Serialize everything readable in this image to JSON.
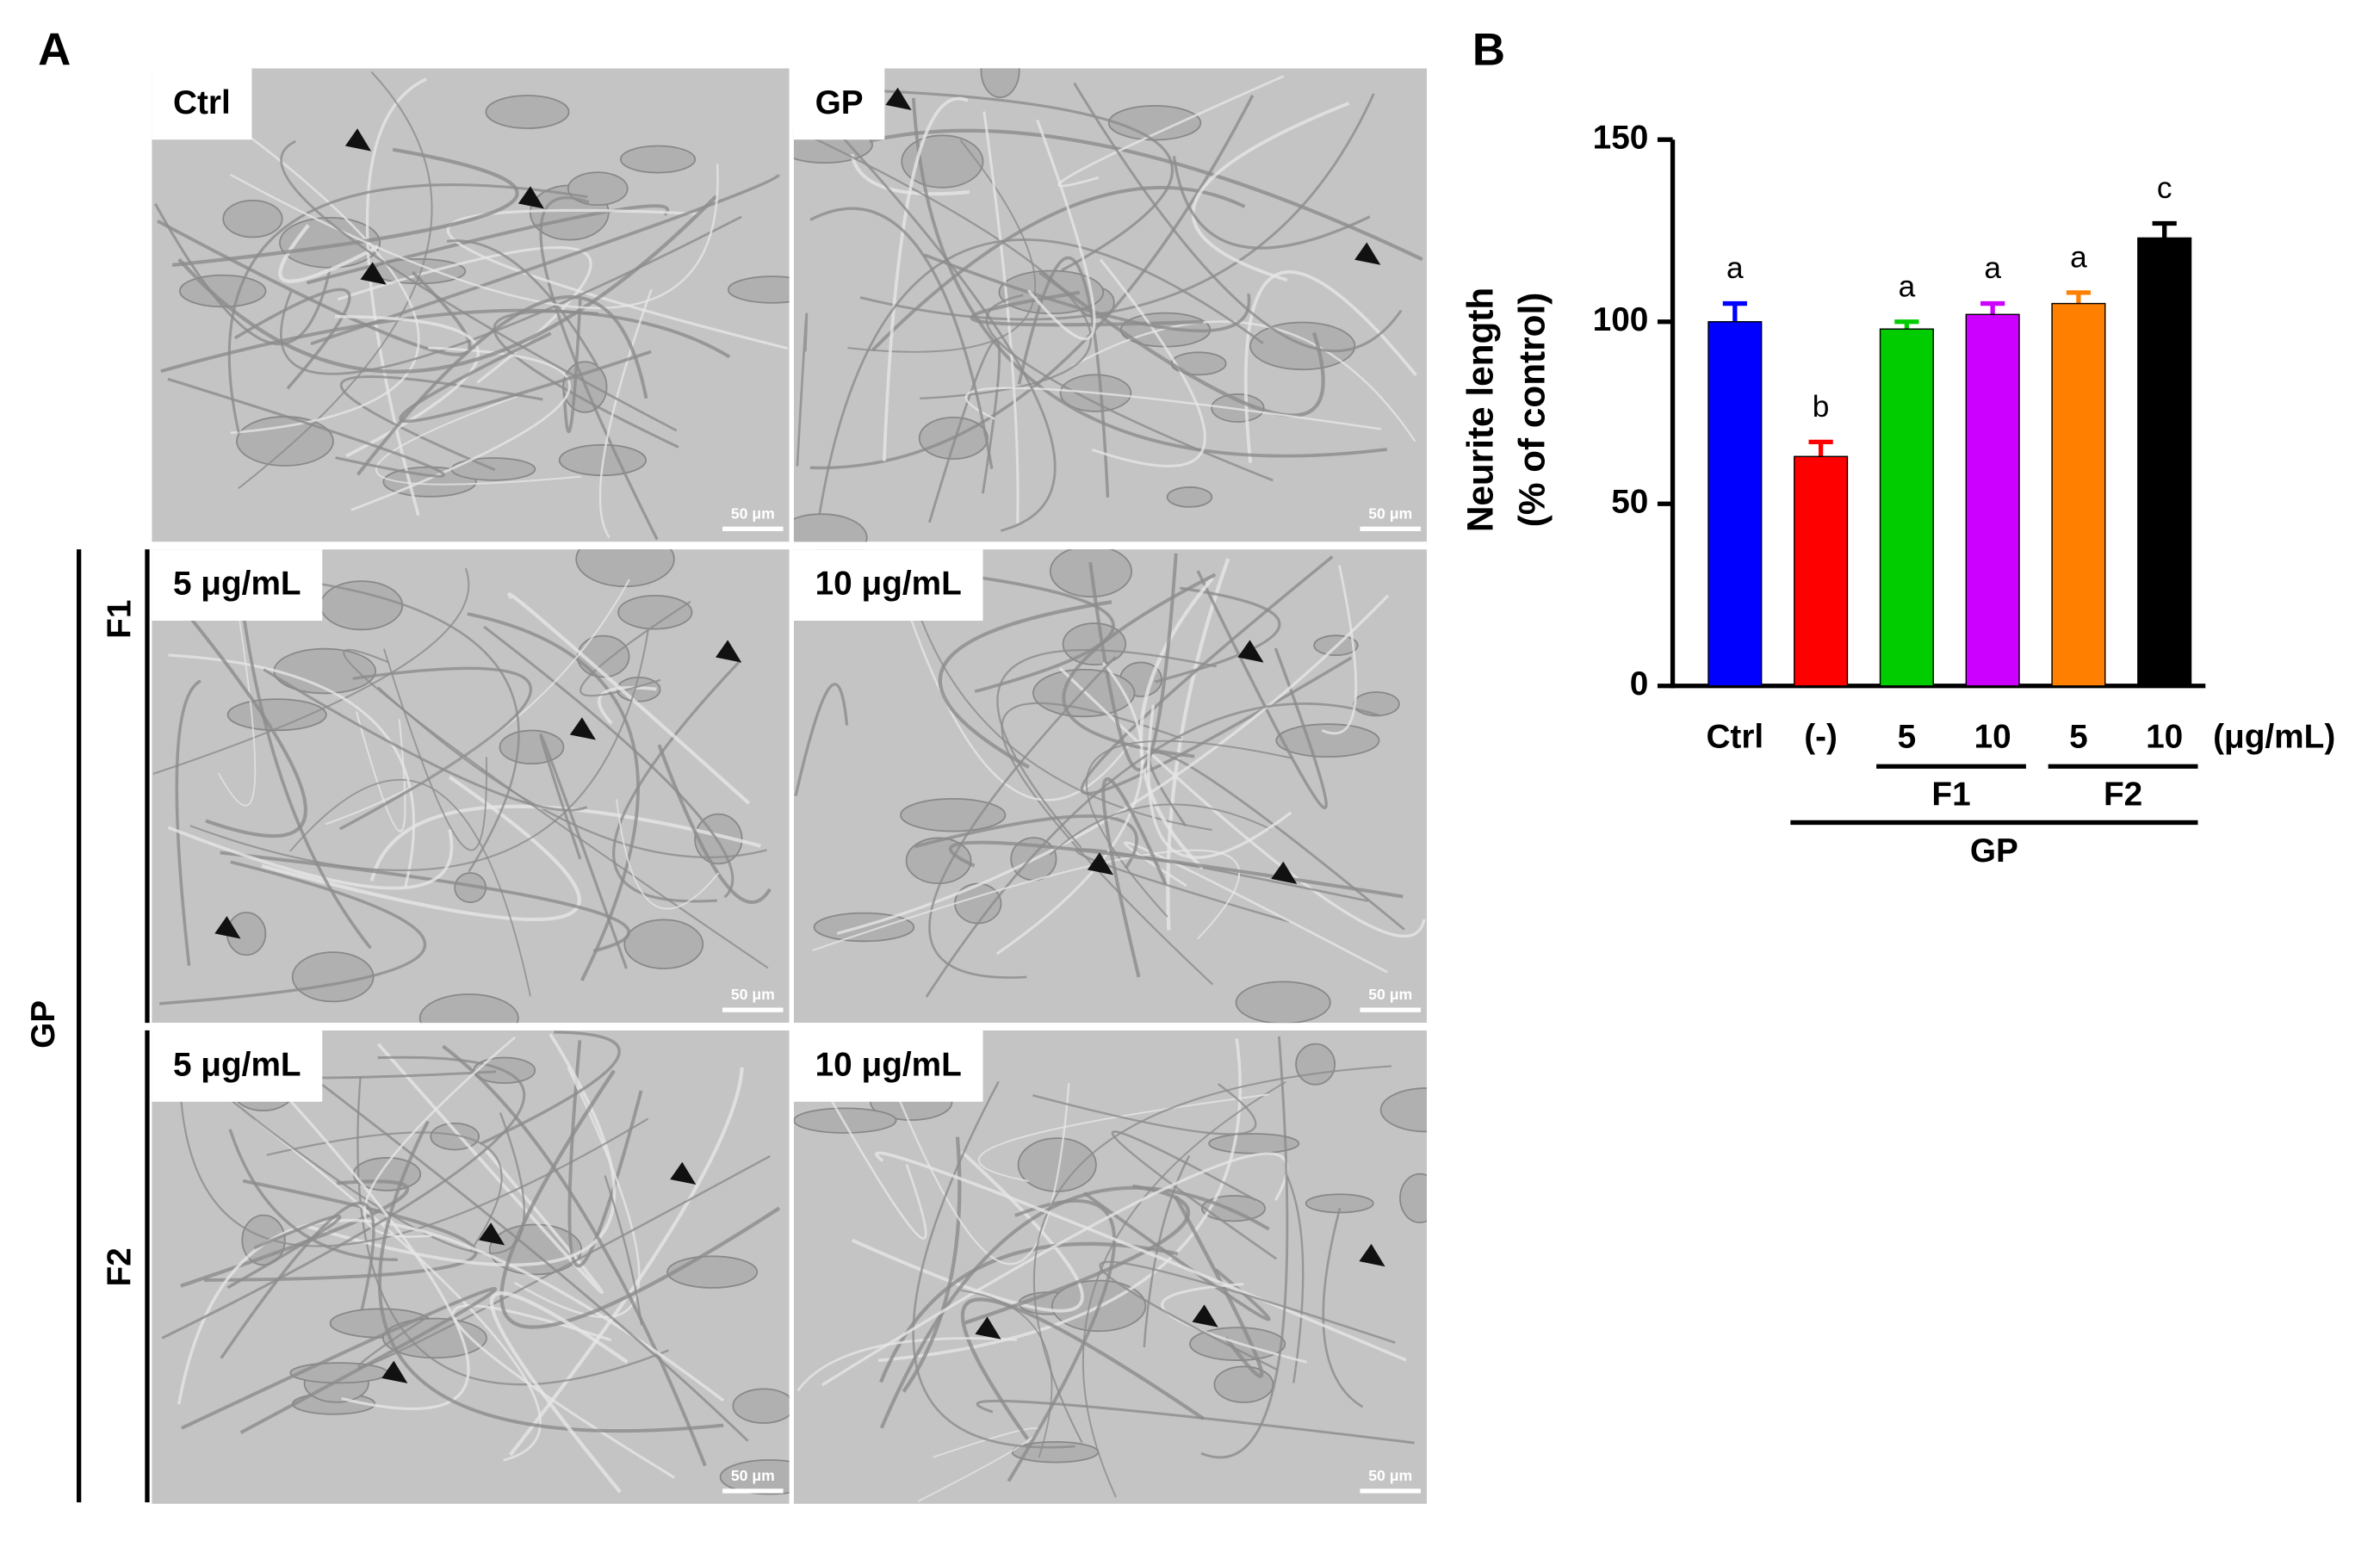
{
  "panel_a": {
    "label": "A",
    "side_label": "GP",
    "row_labels": [
      "F1",
      "F2"
    ],
    "panels": [
      {
        "label": "Ctrl",
        "scale_bar": "50 μm"
      },
      {
        "label": "GP",
        "scale_bar": "50 μm"
      },
      {
        "label": "5 μg/mL",
        "scale_bar": "50 μm"
      },
      {
        "label": "10 μg/mL",
        "scale_bar": "50 μm"
      },
      {
        "label": "5 μg/mL",
        "scale_bar": "50 μm"
      },
      {
        "label": "10 μg/mL",
        "scale_bar": "50 μm"
      }
    ]
  },
  "chart_data": {
    "type": "bar",
    "panel_label": "B",
    "y_label": [
      "Neurite length",
      "(% of control)"
    ],
    "categories": [
      "Ctrl",
      "(-)",
      "5",
      "10",
      "5",
      "10"
    ],
    "unit_label": "(μg/mL)",
    "groups": [
      "F1",
      "F2",
      "GP"
    ],
    "values": [
      100,
      63,
      98,
      102,
      105,
      123
    ],
    "errors": [
      5,
      4,
      2,
      3,
      3,
      4
    ],
    "significance": [
      "a",
      "b",
      "a",
      "a",
      "a",
      "c"
    ],
    "colors": [
      "#0000ff",
      "#ff0000",
      "#00cc00",
      "#cc00ff",
      "#ff8000",
      "#000000"
    ],
    "ylim": [
      0,
      150
    ],
    "yticks": [
      0,
      50,
      100,
      150
    ]
  }
}
